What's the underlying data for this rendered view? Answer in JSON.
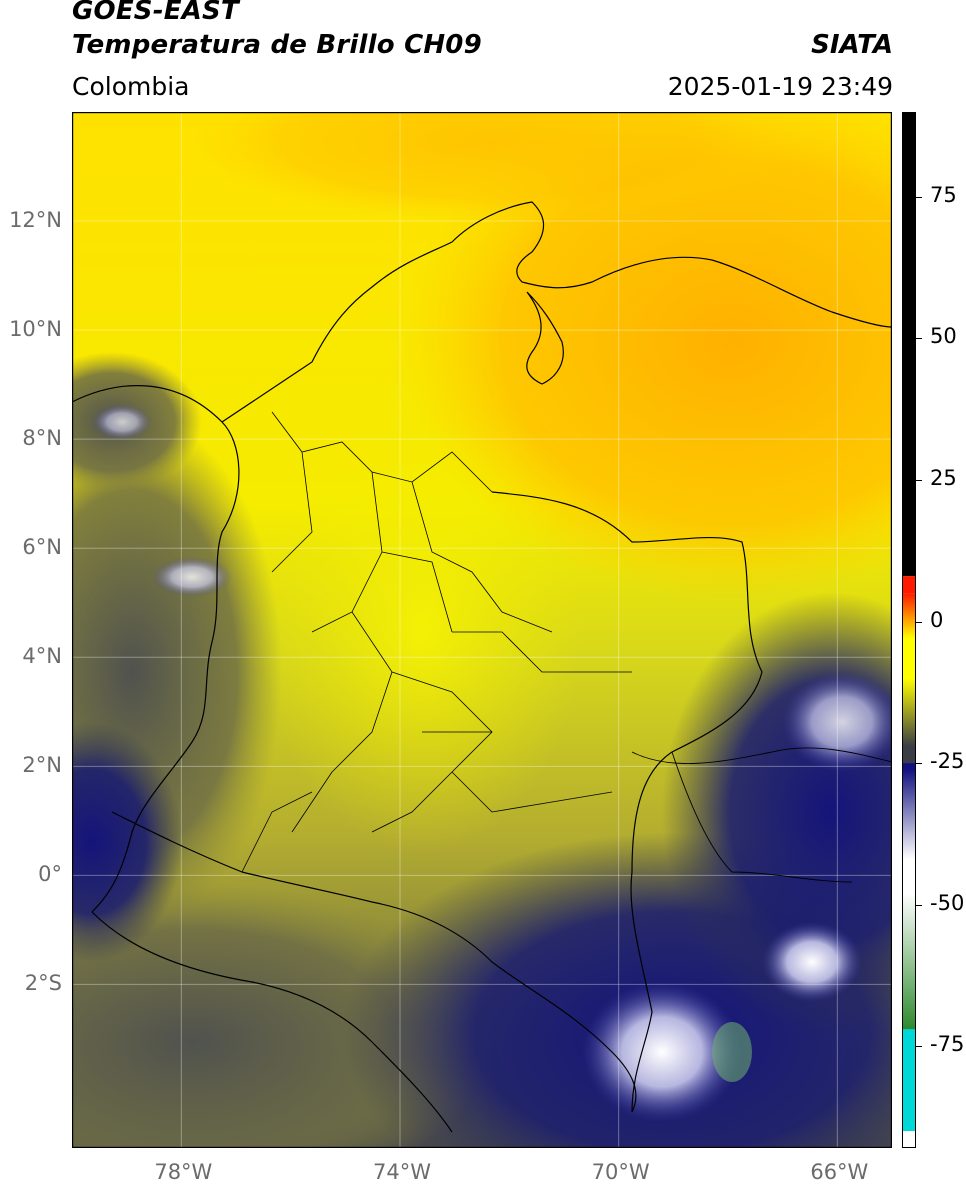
{
  "header": {
    "satellite": "GOES-EAST",
    "product": "Temperatura de Brillo CH09",
    "region": "Colombia",
    "org": "SIATA",
    "timestamp": "2025-01-19 23:49"
  },
  "map": {
    "lat_range": [
      -5,
      14
    ],
    "lon_range": [
      -80,
      -65
    ],
    "lat_ticks": [
      {
        "value": 12,
        "label": "12°N"
      },
      {
        "value": 10,
        "label": "10°N"
      },
      {
        "value": 8,
        "label": "8°N"
      },
      {
        "value": 6,
        "label": "6°N"
      },
      {
        "value": 4,
        "label": "4°N"
      },
      {
        "value": 2,
        "label": "2°N"
      },
      {
        "value": 0,
        "label": "0°"
      },
      {
        "value": -2,
        "label": "2°S"
      }
    ],
    "lon_ticks": [
      {
        "value": -78,
        "label": "78°W"
      },
      {
        "value": -74,
        "label": "74°W"
      },
      {
        "value": -70,
        "label": "70°W"
      },
      {
        "value": -66,
        "label": "66°W"
      }
    ],
    "gridlines": true
  },
  "colorbar": {
    "range": [
      -93,
      90
    ],
    "ticks": [
      {
        "value": 75,
        "label": "75"
      },
      {
        "value": 50,
        "label": "50"
      },
      {
        "value": 25,
        "label": "25"
      },
      {
        "value": 0,
        "label": "0"
      },
      {
        "value": -25,
        "label": "-25"
      },
      {
        "value": -50,
        "label": "-50"
      },
      {
        "value": -75,
        "label": "-75"
      }
    ],
    "colors": {
      "black": "#000000",
      "red": "#ff1a00",
      "orange": "#ff8c00",
      "yellow": "#ffff00",
      "olive": "#9c9a33",
      "dark_gray": "#3a3e44",
      "navy": "#101080",
      "white": "#ffffff",
      "green": "#2d8a2d",
      "cyan": "#00d8d8"
    }
  }
}
